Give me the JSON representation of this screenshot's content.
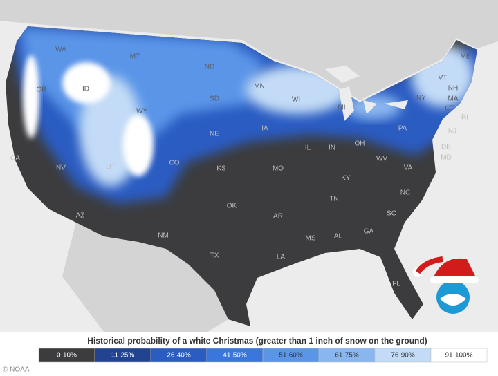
{
  "legend": {
    "title": "Historical probability of a white Christmas (greater than 1 inch of snow on the ground)",
    "items": [
      {
        "label": "0-10%",
        "color": "#3c3c3e"
      },
      {
        "label": "11-25%",
        "color": "#22438f"
      },
      {
        "label": "26-40%",
        "color": "#2a5cc2"
      },
      {
        "label": "41-50%",
        "color": "#3a76dc"
      },
      {
        "label": "51-60%",
        "color": "#5a95e8"
      },
      {
        "label": "61-75%",
        "color": "#8ab6ef"
      },
      {
        "label": "76-90%",
        "color": "#c3dbf6"
      },
      {
        "label": "91-100%",
        "color": "#ffffff"
      }
    ]
  },
  "state_labels": [
    "WA",
    "MT",
    "ND",
    "MN",
    "ME",
    "ID",
    "OR",
    "SD",
    "WI",
    "MI",
    "NY",
    "VT",
    "NH",
    "MA",
    "CT",
    "RI",
    "WY",
    "NE",
    "IA",
    "PA",
    "NJ",
    "IL",
    "IN",
    "OH",
    "DE",
    "MD",
    "NV",
    "UT",
    "CO",
    "KS",
    "MO",
    "WV",
    "VA",
    "KY",
    "CA",
    "TN",
    "NC",
    "OK",
    "AR",
    "SC",
    "AZ",
    "NM",
    "MS",
    "AL",
    "GA",
    "TX",
    "LA",
    "FL"
  ],
  "credit": "© NOAA"
}
